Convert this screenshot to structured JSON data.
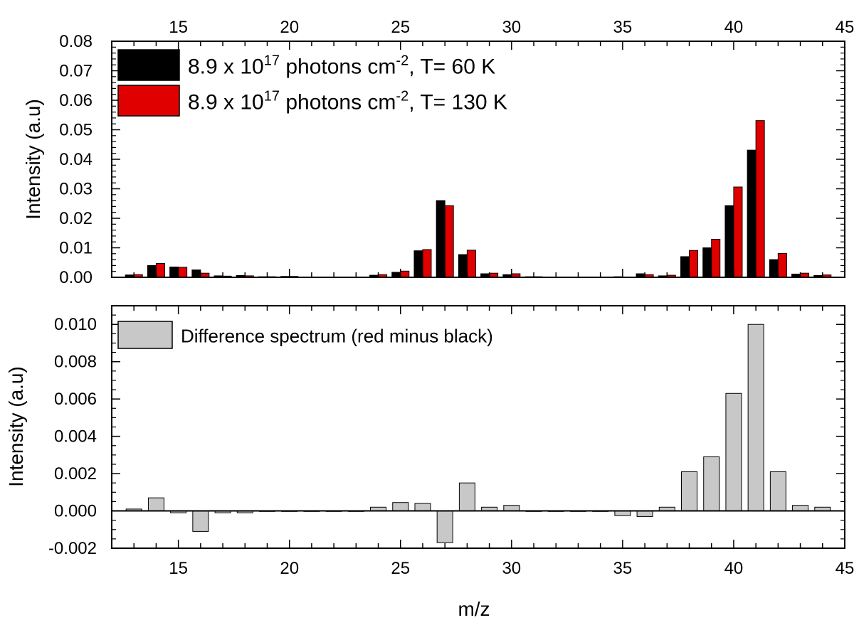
{
  "x_axis_label": "m/z",
  "chart_data": [
    {
      "type": "bar",
      "panel": "top",
      "ylabel": "Intensity (a.u)",
      "xlim": [
        12,
        45
      ],
      "ylim": [
        0,
        0.08
      ],
      "x_ticks": [
        15,
        20,
        25,
        30,
        35,
        40,
        45
      ],
      "y_ticks": [
        "0.00",
        "0.01",
        "0.02",
        "0.03",
        "0.04",
        "0.05",
        "0.06",
        "0.07",
        "0.08"
      ],
      "legend_position": "top-left",
      "x": [
        13,
        14,
        15,
        16,
        17,
        18,
        19,
        20,
        21,
        22,
        23,
        24,
        25,
        26,
        27,
        28,
        29,
        30,
        31,
        32,
        33,
        34,
        35,
        36,
        37,
        38,
        39,
        40,
        41,
        42,
        43,
        44
      ],
      "series": [
        {
          "legend_parts": [
            "8.9 x 10",
            "17",
            " photons cm",
            "-2",
            ", T= 60 K"
          ],
          "color": "#000000",
          "values": [
            0.0008,
            0.004,
            0.0035,
            0.0025,
            0.0005,
            0.0006,
            0.0002,
            0.0003,
            0.0001,
            0.0001,
            0.0001,
            0.0007,
            0.0017,
            0.009,
            0.026,
            0.0077,
            0.0012,
            0.0009,
            0.0002,
            0.0001,
            0.0001,
            0.0001,
            0.0002,
            0.0012,
            0.0005,
            0.007,
            0.01,
            0.0243,
            0.0431,
            0.006,
            0.0011,
            0.0006
          ]
        },
        {
          "legend_parts": [
            "8.9 x 10",
            "17",
            " photons cm",
            "-2",
            ", T= 130 K"
          ],
          "color": "#e00000",
          "values": [
            0.0009,
            0.0047,
            0.0034,
            0.0014,
            0.0004,
            0.0005,
            0.0002,
            0.0003,
            0.0001,
            0.0001,
            0.0001,
            0.0009,
            0.0021,
            0.0094,
            0.0243,
            0.0092,
            0.0014,
            0.0012,
            0.0002,
            0.0001,
            0.0001,
            0.0001,
            0.0001,
            0.0009,
            0.0007,
            0.0091,
            0.0129,
            0.0306,
            0.0531,
            0.0081,
            0.0014,
            0.0008
          ]
        }
      ]
    },
    {
      "type": "bar",
      "panel": "bottom",
      "xlabel": "m/z",
      "ylabel": "Intensity (a.u)",
      "xlim": [
        12,
        45
      ],
      "ylim": [
        -0.002,
        0.011
      ],
      "x_ticks": [
        15,
        20,
        25,
        30,
        35,
        40,
        45
      ],
      "y_ticks": [
        "-0.002",
        "0.000",
        "0.002",
        "0.004",
        "0.006",
        "0.008",
        "0.010"
      ],
      "legend_position": "top-left",
      "x": [
        13,
        14,
        15,
        16,
        17,
        18,
        19,
        20,
        21,
        22,
        23,
        24,
        25,
        26,
        27,
        28,
        29,
        30,
        31,
        32,
        33,
        34,
        35,
        36,
        37,
        38,
        39,
        40,
        41,
        42,
        43,
        44
      ],
      "series": [
        {
          "legend_parts": [
            "Difference spectrum (red minus black)"
          ],
          "color": "#c8c8c8",
          "values": [
            0.0001,
            0.0007,
            -0.0001,
            -0.0011,
            -0.0001,
            -0.0001,
            0.0,
            0.0,
            0.0,
            0.0,
            0.0,
            0.0002,
            0.00045,
            0.0004,
            -0.0017,
            0.0015,
            0.0002,
            0.0003,
            0.0,
            0.0,
            0.0,
            0.0,
            -0.00025,
            -0.0003,
            0.0002,
            0.0021,
            0.0029,
            0.0063,
            0.01,
            0.0021,
            0.0003,
            0.0002
          ]
        }
      ]
    }
  ]
}
